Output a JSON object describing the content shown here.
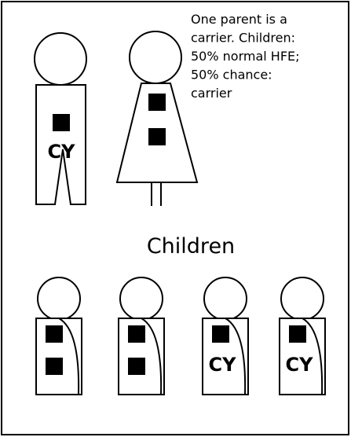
{
  "note": {
    "lines": [
      "One parent is a",
      "carrier. Children:",
      "50% normal HFE;",
      "50% chance:",
      "carrier"
    ]
  },
  "father": {
    "label": "CY"
  },
  "children_heading": "Children",
  "children": [
    {
      "label": null
    },
    {
      "label": null
    },
    {
      "label": "CY"
    },
    {
      "label": "CY"
    }
  ]
}
